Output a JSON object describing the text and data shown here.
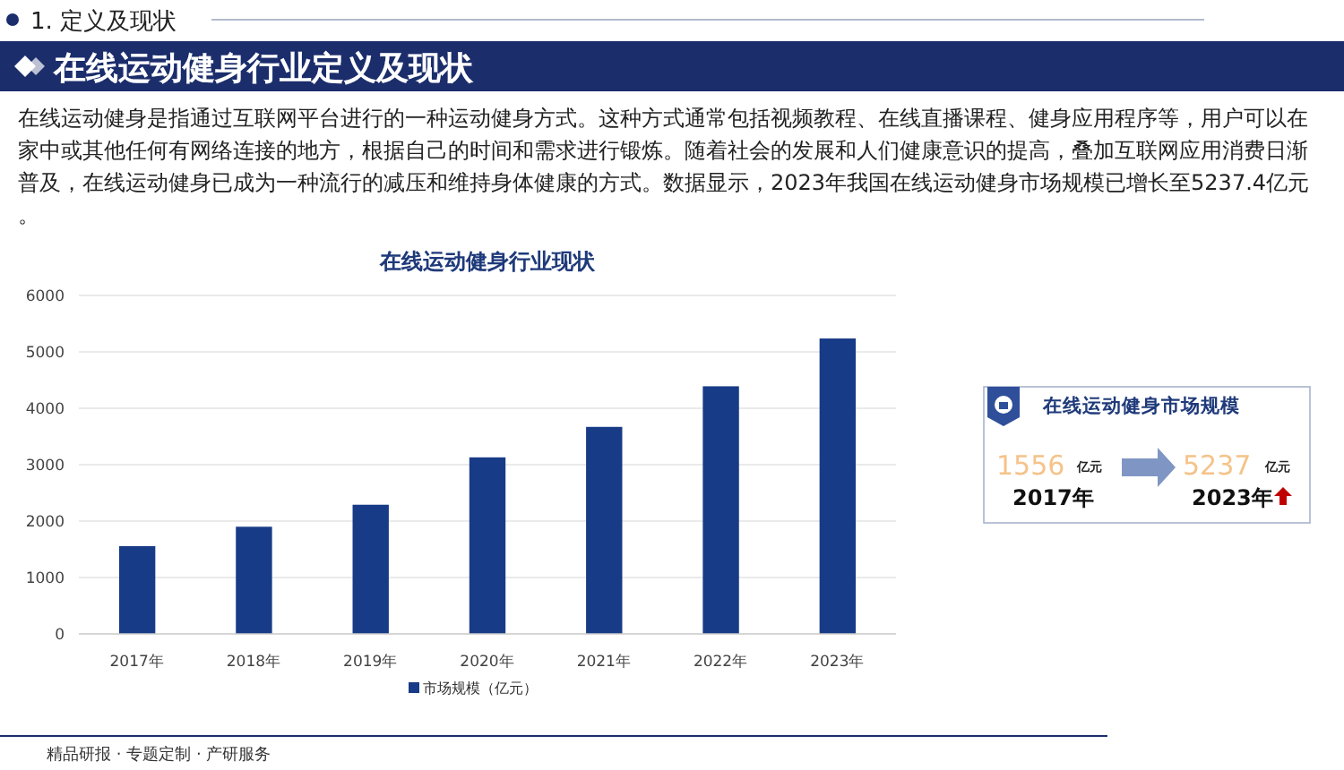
{
  "chart_data": {
    "type": "bar",
    "title": "在线运动健身行业现状",
    "categories": [
      "2017年",
      "2018年",
      "2019年",
      "2020年",
      "2021年",
      "2022年",
      "2023年"
    ],
    "series": [
      {
        "name": "市场规模（亿元）",
        "color": "#173b86",
        "values": [
          1556,
          1900,
          2290,
          3130,
          3670,
          4390,
          5237.4
        ]
      }
    ],
    "ylim": [
      0,
      6000
    ],
    "yticks": [
      0,
      1000,
      2000,
      3000,
      4000,
      5000,
      6000
    ],
    "grid": "y",
    "legend": "bottom",
    "annotations": [
      "1. 定义及现状",
      "在线运动健身行业定义及现状",
      "在线运动健身是指通过互联网平台进行的一种运动健身方式。这种方式通常包括视频教程、在线直播课程、健身应用程序等，用户可以在家中或其他任何有网络连接的地方，根据自己的时间和需求进行锻炼。随着社会的发展和人们健康意识的提高，叠加互联网应用消费日渐普及，在线运动健身已成为一种流行的减压和维持身体健康的方式。数据显示，2023年我国在线运动健身市场规模已增长至5237.4亿元。",
      "在线运动健身市场规模",
      "1556",
      "亿元",
      "2017年",
      "5237",
      "亿元",
      "2023年",
      "精品研报 · 专题定制 · 产研服务"
    ]
  }
}
